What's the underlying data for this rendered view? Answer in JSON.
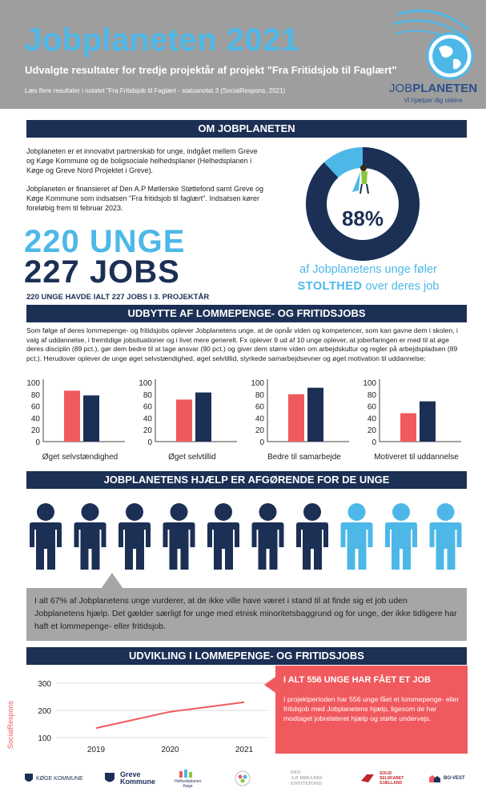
{
  "header": {
    "title": "Jobplaneten 2021",
    "subtitle": "Udvalgte resultater for tredje projektår af projekt \"Fra Fritidsjob til Faglært\"",
    "readmore": "Læs flere resultater i notatet \"Fra Fritidsjob til Faglært - statusnotat 3 (SocialRespons, 2021)",
    "logo_brand_a": "JOB",
    "logo_brand_b": "PLANETEN",
    "logo_tagline": "Vi hjælper dig videre"
  },
  "om": {
    "bar_title": "OM JOBPLANETEN",
    "para1": "Jobplaneten er et innovativt partnerskab for unge, indgået mellem Greve og Køge Kommune og de boligsociale helhedsplaner (Helhedsplanen i Køge og Greve Nord Projektet i Greve).",
    "para2": "Jobplaneten er finansieret af Den A.P Møllerske Støttefond samt Greve og Køge Kommune som indsatsen \"Fra fritidsjob til faglært\". Indsatsen kører foreløbig frem til februar 2023.",
    "big_line1": "220 UNGE",
    "big_line2": "227 JOBS",
    "big_caption": "220 UNGE HAVDE IALT 227 JOBS I 3. PROJEKTÅR",
    "donut_percent_label": "88%",
    "donut_value": 0.88,
    "donut_caption_line1": "af Jobplanetens unge føler",
    "donut_caption_strong": "STOLTHED",
    "donut_caption_rest": " over deres job",
    "colors": {
      "dark": "#1c2f55",
      "light": "#4db8e8"
    }
  },
  "udbytte": {
    "bar_title": "UDBYTTE AF LOMMEPENGE- OG FRITIDSJOBS",
    "text": "Som følge af deres lommepenge- og fritidsjobs oplever Jobplanetens unge, at de opnår viden og kompetencer, som kan gavne dem i skolen, i valg af uddannelse, i fremtidige jobsituationer og i livet mere generelt. Fx oplever 9 ud af 10 unge oplever, at joberfaringen er med til at øge deres disciplin (89 pct.), gør dem bedre til at tage ansvar (90 pct.) og giver dem større viden om arbejdskultur og regler på arbejdspladsen (89 pct.). Herudover oplever de unge øget selvstændighed, øget selvtillid, styrkede samarbejdsevner og øget motivation til uddannelse:"
  },
  "chart_data": [
    {
      "type": "bar",
      "ylim": [
        0,
        100
      ],
      "yticks": [
        0,
        20,
        40,
        60,
        80,
        100
      ],
      "colors": [
        "#f05a5e",
        "#1c2f55"
      ],
      "groups": [
        {
          "label": "Øget selvstændighed",
          "values": [
            86,
            78
          ]
        },
        {
          "label": "Øget selvtillid",
          "values": [
            71,
            83
          ]
        },
        {
          "label": "Bedre til samarbejde",
          "values": [
            80,
            91
          ]
        },
        {
          "label": "Motiveret til uddannelse",
          "values": [
            48,
            68
          ]
        }
      ]
    },
    {
      "type": "line",
      "x": [
        "2019",
        "2020",
        "2021"
      ],
      "y": [
        135,
        195,
        230
      ],
      "ylim": [
        100,
        300
      ],
      "yticks": [
        100,
        200,
        300
      ],
      "color": "#f05a5e"
    }
  ],
  "hjaelp": {
    "bar_title": "JOBPLANETENS HJÆLP ER AFGØRENDE FOR DE UNGE",
    "people_total": 10,
    "people_highlight": 7,
    "people_colors": {
      "main": "#1c2f55",
      "rest": "#4db8e8"
    },
    "callout": "I alt 67% af Jobplanetens unge vurderer, at de ikke ville have været i stand til at finde sig et job uden Jobplanetens hjælp. Det gælder særligt for unge med etnisk minoritetsbaggrund og for unge, der ikke tidligere har haft et lommepenge- eller fritidsjob."
  },
  "udvikling": {
    "bar_title": "UDVIKLING I LOMMEPENGE- OG FRITIDSJOBS",
    "side_label": "SocialRespons",
    "box_title": "I ALT 556 UNGE HAR FÅET ET JOB",
    "box_text": "I projektperioden har 556 unge fået et lommepenge- eller fritidsjob med Jobplanetens hjælp, ligesom de har modtaget jobrelateret hjælp og støtte undervejs."
  },
  "partners": {
    "koege": "KØGE KOMMUNE",
    "greve_a": "Greve",
    "greve_b": "Kommune",
    "helhed_a": "Helhedsplanen",
    "helhed_b": "Køge",
    "moller_a": "DEN",
    "moller_b": "A.P. MØLLERS",
    "moller_c": "STØTTEFOND",
    "solid_a": "SOLID",
    "solid_b": "SELSKABET",
    "solid_c": "SJÆLLAND",
    "bo_west": "BO-VEST"
  }
}
